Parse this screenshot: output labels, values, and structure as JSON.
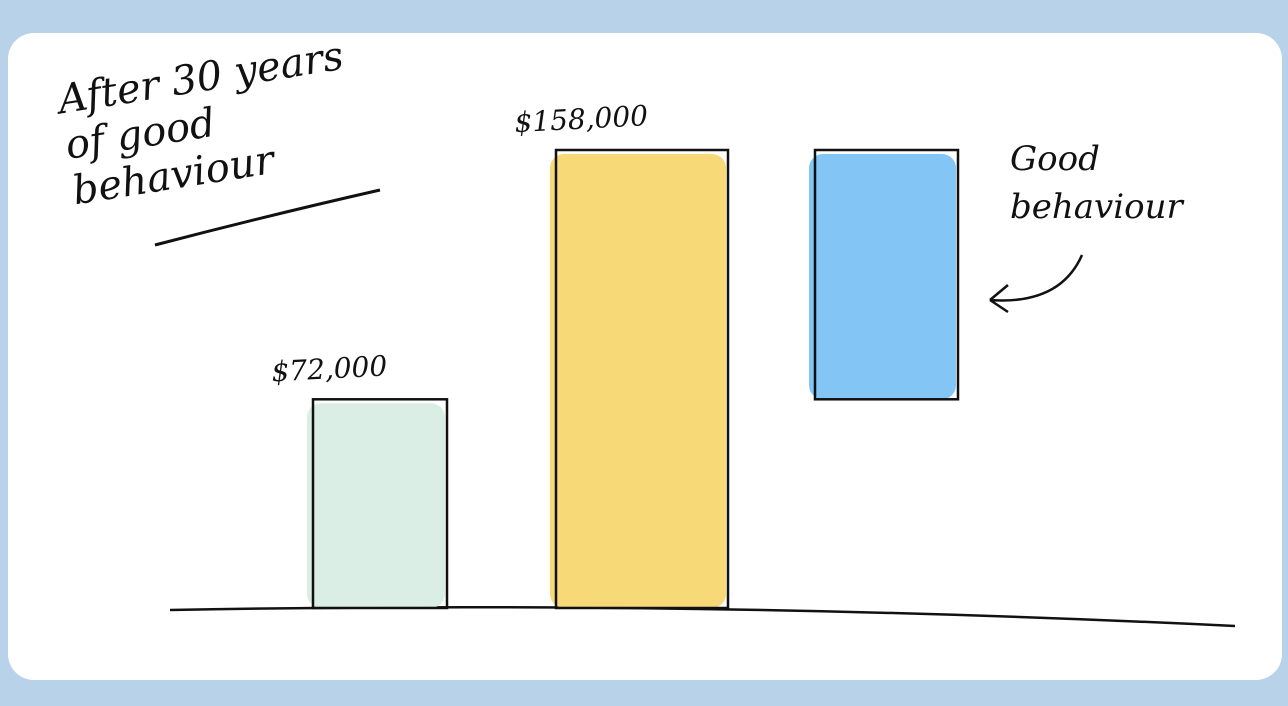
{
  "chart_data": {
    "type": "waterfall",
    "title": "After 30 years of good behaviour",
    "annotation": "Good behaviour",
    "categories": [
      null,
      null,
      null
    ],
    "values": [
      72000,
      158000,
      86000
    ],
    "value_labels": [
      "$72,000",
      "$158,000",
      null
    ],
    "kinds": [
      "total",
      "total",
      "delta"
    ],
    "colors": [
      "#d9ede5",
      "#f7d770",
      "#7cc2f4"
    ]
  }
}
